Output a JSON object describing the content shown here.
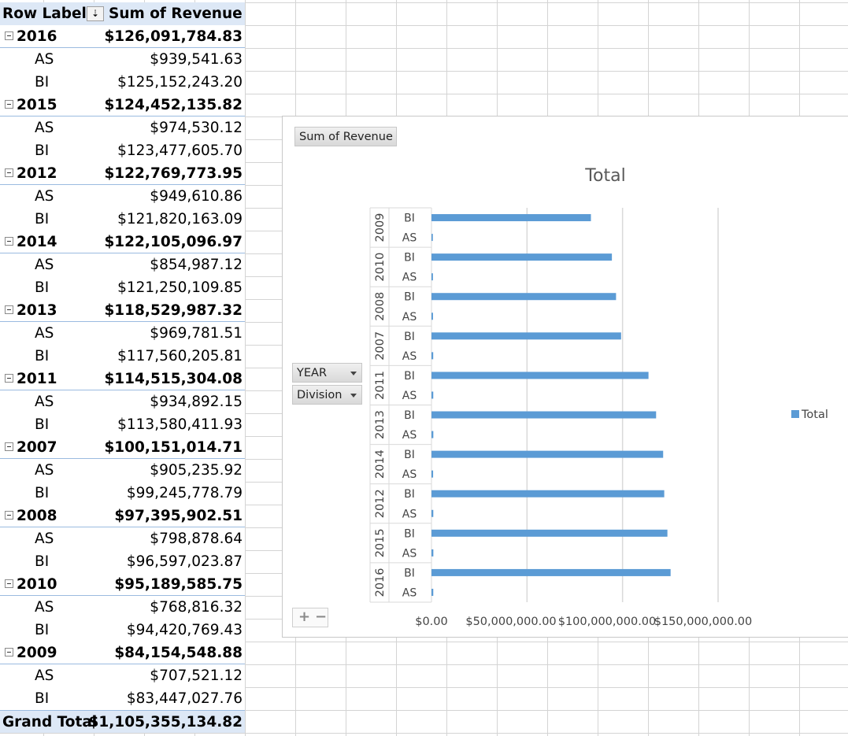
{
  "pivot": {
    "header": {
      "row_labels": "Row Labels",
      "sort_glyph": "⇣",
      "sum_label": "Sum of Revenue"
    },
    "groups": [
      {
        "year": "2016",
        "total": "$126,091,784.83",
        "items": [
          {
            "label": "AS",
            "value": "$939,541.63"
          },
          {
            "label": "BI",
            "value": "$125,152,243.20"
          }
        ]
      },
      {
        "year": "2015",
        "total": "$124,452,135.82",
        "items": [
          {
            "label": "AS",
            "value": "$974,530.12"
          },
          {
            "label": "BI",
            "value": "$123,477,605.70"
          }
        ]
      },
      {
        "year": "2012",
        "total": "$122,769,773.95",
        "items": [
          {
            "label": "AS",
            "value": "$949,610.86"
          },
          {
            "label": "BI",
            "value": "$121,820,163.09"
          }
        ]
      },
      {
        "year": "2014",
        "total": "$122,105,096.97",
        "items": [
          {
            "label": "AS",
            "value": "$854,987.12"
          },
          {
            "label": "BI",
            "value": "$121,250,109.85"
          }
        ]
      },
      {
        "year": "2013",
        "total": "$118,529,987.32",
        "items": [
          {
            "label": "AS",
            "value": "$969,781.51"
          },
          {
            "label": "BI",
            "value": "$117,560,205.81"
          }
        ]
      },
      {
        "year": "2011",
        "total": "$114,515,304.08",
        "items": [
          {
            "label": "AS",
            "value": "$934,892.15"
          },
          {
            "label": "BI",
            "value": "$113,580,411.93"
          }
        ]
      },
      {
        "year": "2007",
        "total": "$100,151,014.71",
        "items": [
          {
            "label": "AS",
            "value": "$905,235.92"
          },
          {
            "label": "BI",
            "value": "$99,245,778.79"
          }
        ]
      },
      {
        "year": "2008",
        "total": "$97,395,902.51",
        "items": [
          {
            "label": "AS",
            "value": "$798,878.64"
          },
          {
            "label": "BI",
            "value": "$96,597,023.87"
          }
        ]
      },
      {
        "year": "2010",
        "total": "$95,189,585.75",
        "items": [
          {
            "label": "AS",
            "value": "$768,816.32"
          },
          {
            "label": "BI",
            "value": "$94,420,769.43"
          }
        ]
      },
      {
        "year": "2009",
        "total": "$84,154,548.88",
        "items": [
          {
            "label": "AS",
            "value": "$707,521.12"
          },
          {
            "label": "BI",
            "value": "$83,447,027.76"
          }
        ]
      }
    ],
    "grand_total": {
      "label": "Grand Total",
      "value": "$1,105,355,134.82"
    }
  },
  "chart": {
    "value_field_button": "Sum of Revenue",
    "axis_field_buttons": [
      "YEAR",
      "Division"
    ],
    "zoom_plus": "+",
    "zoom_minus": "−"
  },
  "chart_data": {
    "type": "bar",
    "orientation": "horizontal",
    "title": "Total",
    "legend": {
      "entries": [
        "Total"
      ],
      "position": "right"
    },
    "grid": true,
    "xlim": [
      0,
      150000000
    ],
    "x_ticks": [
      0,
      50000000,
      100000000,
      150000000
    ],
    "x_tick_labels": [
      "$0.00",
      "$50,000,000.00",
      "$100,000,000.00",
      "$150,000,000.00"
    ],
    "color": "#5b9bd5",
    "groups": [
      {
        "year": "2009",
        "items": [
          {
            "label": "BI",
            "value": 83447027.76
          },
          {
            "label": "AS",
            "value": 707521.12
          }
        ]
      },
      {
        "year": "2010",
        "items": [
          {
            "label": "BI",
            "value": 94420769.43
          },
          {
            "label": "AS",
            "value": 768816.32
          }
        ]
      },
      {
        "year": "2008",
        "items": [
          {
            "label": "BI",
            "value": 96597023.87
          },
          {
            "label": "AS",
            "value": 798878.64
          }
        ]
      },
      {
        "year": "2007",
        "items": [
          {
            "label": "BI",
            "value": 99245778.79
          },
          {
            "label": "AS",
            "value": 905235.92
          }
        ]
      },
      {
        "year": "2011",
        "items": [
          {
            "label": "BI",
            "value": 113580411.93
          },
          {
            "label": "AS",
            "value": 934892.15
          }
        ]
      },
      {
        "year": "2013",
        "items": [
          {
            "label": "BI",
            "value": 117560205.81
          },
          {
            "label": "AS",
            "value": 969781.51
          }
        ]
      },
      {
        "year": "2014",
        "items": [
          {
            "label": "BI",
            "value": 121250109.85
          },
          {
            "label": "AS",
            "value": 854987.12
          }
        ]
      },
      {
        "year": "2012",
        "items": [
          {
            "label": "BI",
            "value": 121820163.09
          },
          {
            "label": "AS",
            "value": 949610.86
          }
        ]
      },
      {
        "year": "2015",
        "items": [
          {
            "label": "BI",
            "value": 123477605.7
          },
          {
            "label": "AS",
            "value": 974530.12
          }
        ]
      },
      {
        "year": "2016",
        "items": [
          {
            "label": "BI",
            "value": 125152243.2
          },
          {
            "label": "AS",
            "value": 939541.63
          }
        ]
      }
    ]
  }
}
